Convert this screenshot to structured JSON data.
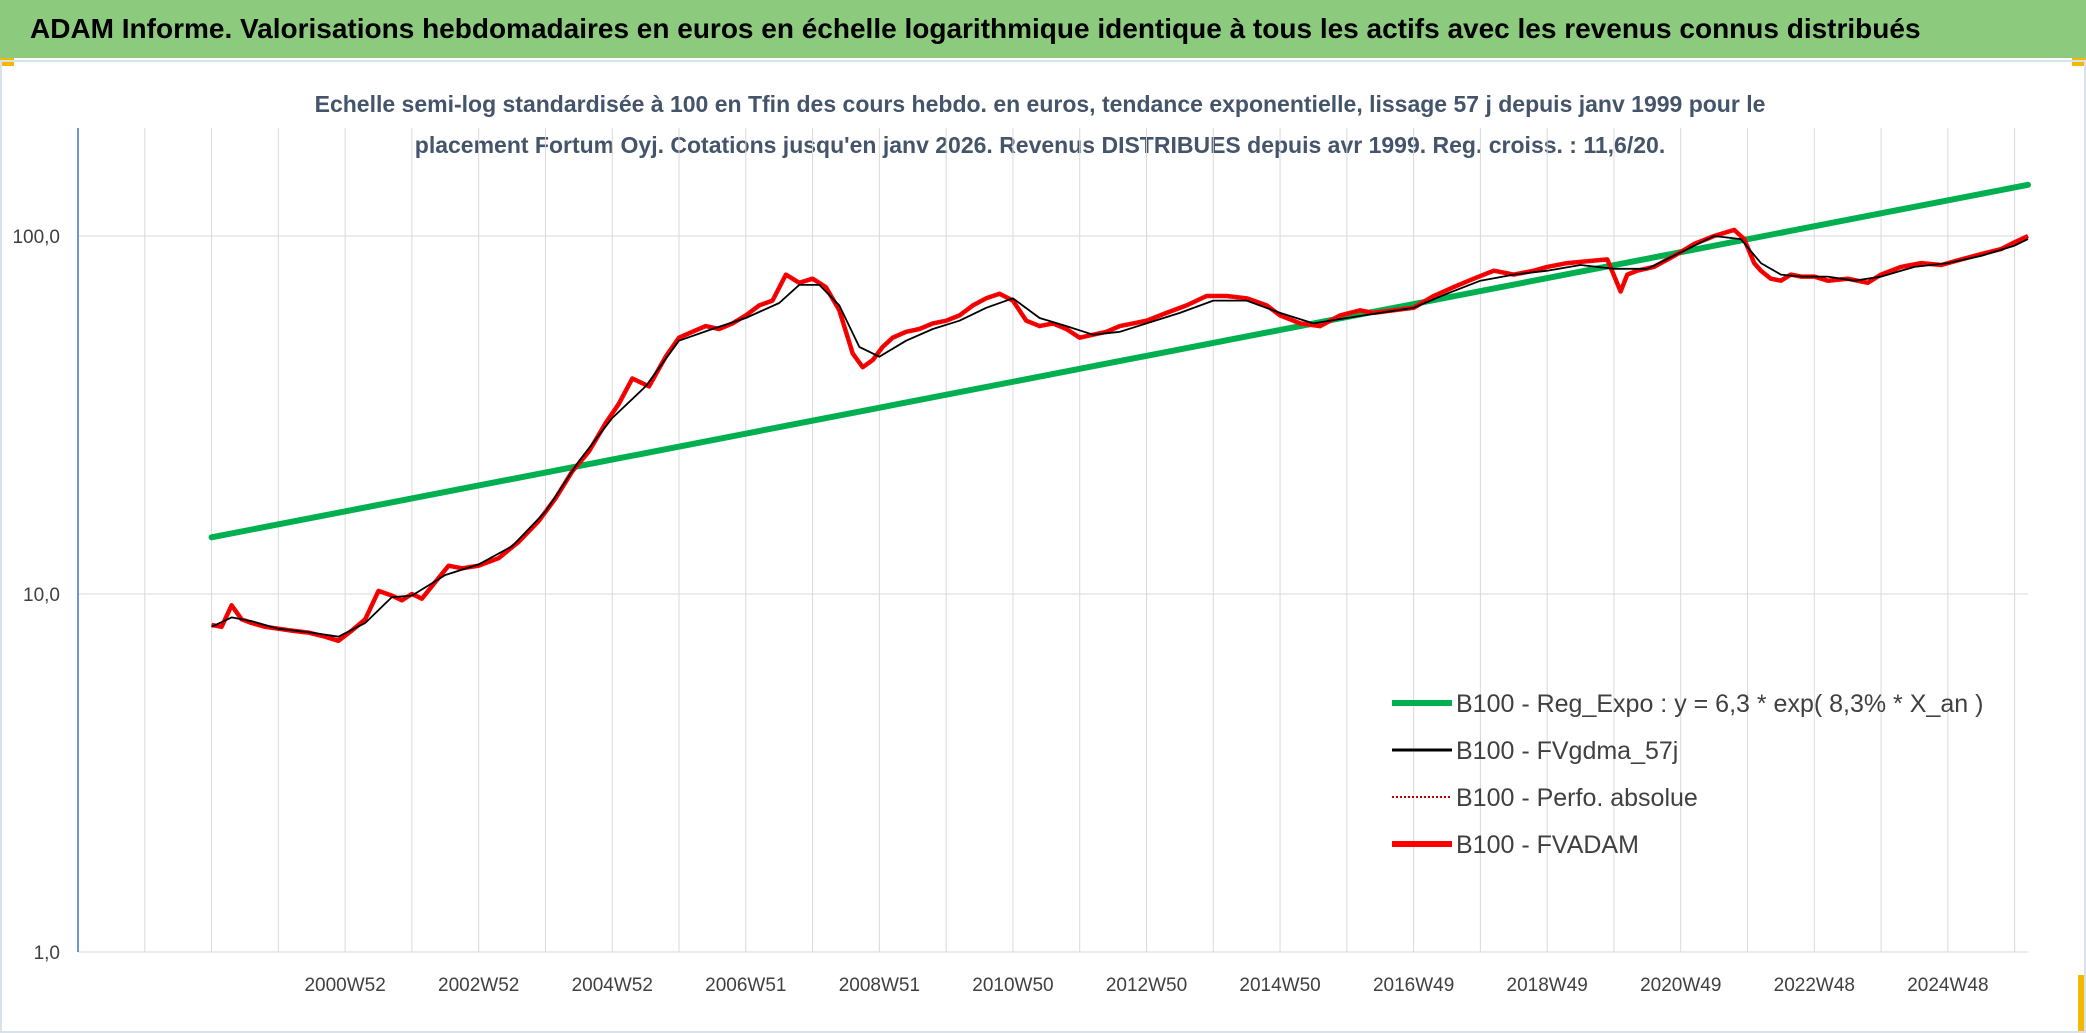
{
  "banner": {
    "title": "ADAM Informe. Valorisations hebdomadaires en euros en échelle logarithmique identique à tous les actifs avec les revenus connus distribués"
  },
  "colors": {
    "banner_bg": "#8ccb7e",
    "corner_accent": "#f5b800",
    "regression": "#00b050",
    "fvadam": "#ff0000",
    "gdma": "#000000",
    "perfo": "#c00000"
  },
  "chart_data": {
    "type": "line",
    "title_line1": "Echelle semi-log standardisée à 100 en Tfin des cours hebdo. en euros, tendance exponentielle, lissage 57 j depuis janv 1999 pour le",
    "title_line2": "placement Fortum Oyj. Cotations jusqu'en janv 2026. Revenus DISTRIBUES depuis avr 1999. Reg. croiss. : 11,6/20.",
    "y_scale": "log",
    "ylim": [
      1,
      190
    ],
    "y_ticks": [
      {
        "value": 1,
        "label": "1,0"
      },
      {
        "value": 10,
        "label": "10,0"
      },
      {
        "value": 100,
        "label": "100,0"
      }
    ],
    "xlim": [
      1997.0,
      2026.2
    ],
    "x_ticks": [
      {
        "x": 2001.0,
        "label": "2000W52"
      },
      {
        "x": 2003.0,
        "label": "2002W52"
      },
      {
        "x": 2005.0,
        "label": "2004W52"
      },
      {
        "x": 2007.0,
        "label": "2006W51"
      },
      {
        "x": 2009.0,
        "label": "2008W51"
      },
      {
        "x": 2011.0,
        "label": "2010W50"
      },
      {
        "x": 2013.0,
        "label": "2012W50"
      },
      {
        "x": 2015.0,
        "label": "2014W50"
      },
      {
        "x": 2017.0,
        "label": "2016W49"
      },
      {
        "x": 2019.0,
        "label": "2018W49"
      },
      {
        "x": 2021.0,
        "label": "2020W49"
      },
      {
        "x": 2023.0,
        "label": "2022W48"
      },
      {
        "x": 2025.0,
        "label": "2024W48"
      }
    ],
    "grid_x": [
      1998.0,
      1999.0,
      2000.0,
      2001.0,
      2002.0,
      2003.0,
      2004.0,
      2005.0,
      2006.0,
      2007.0,
      2008.0,
      2009.0,
      2010.0,
      2011.0,
      2012.0,
      2013.0,
      2014.0,
      2015.0,
      2016.0,
      2017.0,
      2018.0,
      2019.0,
      2020.0,
      2021.0,
      2022.0,
      2023.0,
      2024.0,
      2025.0,
      2026.0
    ],
    "grid_y": [
      1,
      10,
      100
    ],
    "legend": {
      "position": "bottom-right",
      "entries": [
        {
          "label": "B100 - Reg_Expo : y = 6,3 * exp( 8,3% *  X_an )",
          "color": "#00b050",
          "style": "thick"
        },
        {
          "label": "B100 - FVgdma_57j",
          "color": "#000000",
          "style": "thin"
        },
        {
          "label": "B100 - Perfo. absolue",
          "color": "#c00000",
          "style": "dotted"
        },
        {
          "label": "B100 - FVADAM",
          "color": "#ff0000",
          "style": "thick"
        }
      ]
    },
    "series": [
      {
        "name": "B100 - Reg_Expo : y = 6,3 * exp( 8,3% *  X_an )",
        "x": [
          1999.0,
          2026.2
        ],
        "values": [
          14.4,
          139
        ]
      },
      {
        "name": "B100 - FVADAM",
        "x": [
          1999.0,
          1999.15,
          1999.3,
          1999.45,
          1999.6,
          1999.8,
          2000.0,
          2000.2,
          2000.45,
          2000.7,
          2000.9,
          2001.1,
          2001.3,
          2001.5,
          2001.7,
          2001.85,
          2002.0,
          2002.15,
          2002.35,
          2002.55,
          2002.75,
          2003.0,
          2003.3,
          2003.6,
          2003.9,
          2004.15,
          2004.4,
          2004.65,
          2004.9,
          2005.1,
          2005.3,
          2005.55,
          2005.8,
          2006.0,
          2006.2,
          2006.4,
          2006.6,
          2006.8,
          2007.0,
          2007.2,
          2007.4,
          2007.6,
          2007.8,
          2008.0,
          2008.2,
          2008.4,
          2008.6,
          2008.75,
          2008.9,
          2009.05,
          2009.2,
          2009.4,
          2009.6,
          2009.8,
          2010.0,
          2010.2,
          2010.4,
          2010.6,
          2010.8,
          2011.0,
          2011.2,
          2011.4,
          2011.6,
          2011.8,
          2012.0,
          2012.2,
          2012.4,
          2012.6,
          2012.8,
          2013.0,
          2013.3,
          2013.6,
          2013.9,
          2014.2,
          2014.5,
          2014.8,
          2015.0,
          2015.3,
          2015.6,
          2015.9,
          2016.2,
          2016.4,
          2016.7,
          2017.0,
          2017.3,
          2017.6,
          2017.9,
          2018.2,
          2018.5,
          2018.8,
          2019.0,
          2019.3,
          2019.6,
          2019.9,
          2020.1,
          2020.2,
          2020.35,
          2020.6,
          2020.9,
          2021.2,
          2021.5,
          2021.8,
          2021.95,
          2022.1,
          2022.2,
          2022.35,
          2022.5,
          2022.65,
          2022.8,
          2023.0,
          2023.2,
          2023.5,
          2023.8,
          2024.0,
          2024.3,
          2024.6,
          2024.9,
          2025.2,
          2025.5,
          2025.8,
          2026.0,
          2026.2
        ],
        "values": [
          8.2,
          8.1,
          9.3,
          8.5,
          8.3,
          8.1,
          8.0,
          7.9,
          7.8,
          7.6,
          7.4,
          7.9,
          8.5,
          10.2,
          9.9,
          9.6,
          10.0,
          9.7,
          10.8,
          12.0,
          11.8,
          12.0,
          12.6,
          14.0,
          16.0,
          18.5,
          22.0,
          25.0,
          30.0,
          34.0,
          40.0,
          38.0,
          46.0,
          52.0,
          54.0,
          56.0,
          55.0,
          57.0,
          60.0,
          64.0,
          66.0,
          78.0,
          74.0,
          76.0,
          72.0,
          62.0,
          47.0,
          43.0,
          45.0,
          49.0,
          52.0,
          54.0,
          55.0,
          57.0,
          58.0,
          60.0,
          64.0,
          67.0,
          69.0,
          66.0,
          58.0,
          56.0,
          57.0,
          55.0,
          52.0,
          53.0,
          54.0,
          56.0,
          57.0,
          58.0,
          61.0,
          64.0,
          68.0,
          68.0,
          67.0,
          64.0,
          60.0,
          57.0,
          56.0,
          60.0,
          62.0,
          61.0,
          62.0,
          63.0,
          68.0,
          72.0,
          76.0,
          80.0,
          78.0,
          80.0,
          82.0,
          84.0,
          85.0,
          86.0,
          70.0,
          78.0,
          80.0,
          82.0,
          88.0,
          95.0,
          100.0,
          104.0,
          98.0,
          84.0,
          80.0,
          76.0,
          75.0,
          78.0,
          77.0,
          77.0,
          75.0,
          76.0,
          74.0,
          78.0,
          82.0,
          84.0,
          83.0,
          86.0,
          89.0,
          92.0,
          96.0,
          100.0
        ]
      },
      {
        "name": "B100 - FVgdma_57j",
        "x": [
          1999.0,
          1999.3,
          1999.6,
          2000.0,
          2000.5,
          2000.9,
          2001.3,
          2001.7,
          2002.0,
          2002.5,
          2003.0,
          2003.5,
          2004.0,
          2004.5,
          2005.0,
          2005.5,
          2006.0,
          2006.5,
          2007.0,
          2007.5,
          2007.8,
          2008.1,
          2008.4,
          2008.7,
          2009.0,
          2009.4,
          2009.8,
          2010.2,
          2010.6,
          2011.0,
          2011.4,
          2011.8,
          2012.2,
          2012.6,
          2013.0,
          2013.5,
          2014.0,
          2014.5,
          2015.0,
          2015.5,
          2016.0,
          2016.5,
          2017.0,
          2017.5,
          2018.0,
          2018.5,
          2019.0,
          2019.5,
          2020.0,
          2020.5,
          2021.0,
          2021.5,
          2021.9,
          2022.2,
          2022.5,
          2022.8,
          2023.2,
          2023.6,
          2024.0,
          2024.5,
          2025.0,
          2025.5,
          2026.0,
          2026.2
        ],
        "values": [
          8.1,
          8.6,
          8.4,
          8.0,
          7.8,
          7.6,
          8.3,
          9.8,
          9.9,
          11.3,
          12.1,
          13.6,
          17.0,
          23.5,
          31.0,
          38.0,
          51.0,
          55.0,
          59.0,
          65.0,
          73.0,
          73.0,
          64.0,
          49.0,
          46.0,
          51.0,
          55.0,
          58.0,
          63.0,
          67.0,
          59.0,
          56.0,
          53.0,
          54.0,
          57.0,
          61.0,
          66.0,
          66.0,
          61.0,
          57.0,
          59.0,
          61.0,
          63.0,
          69.0,
          75.0,
          78.0,
          80.0,
          83.0,
          81.0,
          81.0,
          90.0,
          100.0,
          98.0,
          84.0,
          78.0,
          77.0,
          77.0,
          75.0,
          77.0,
          82.0,
          84.0,
          88.0,
          94.0,
          98.0
        ]
      }
    ]
  }
}
